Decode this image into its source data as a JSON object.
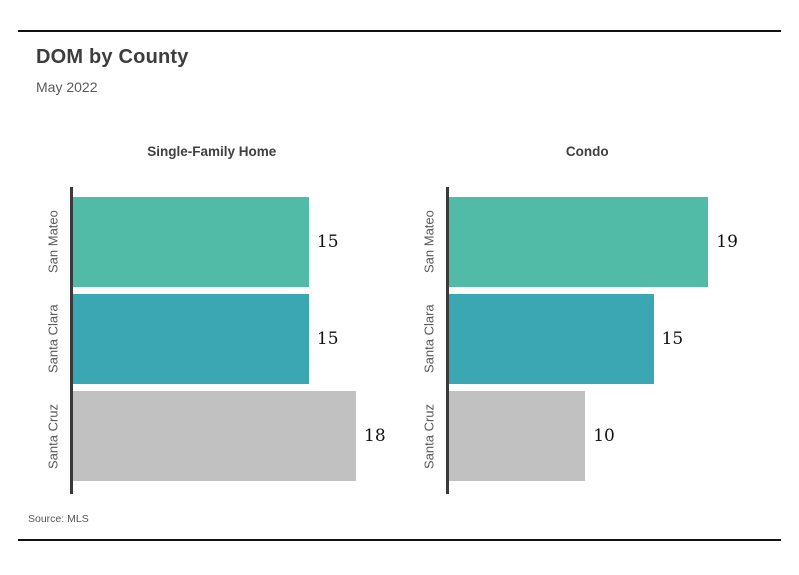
{
  "colors": {
    "background": "#ffffff",
    "title_text": "#3d3d3d",
    "subtitle_text": "#5a5a5a",
    "panel_title_text": "#404040",
    "category_label_text": "#5a5a5a",
    "value_label_text": "#111111",
    "axis_line": "#3a3a3a",
    "rule_line": "#121212"
  },
  "chart_data": {
    "type": "bar",
    "orientation": "horizontal",
    "title": "DOM by County",
    "subtitle": "May 2022",
    "source": "Source: MLS",
    "grid": false,
    "legend": "none",
    "categories": [
      "San Mateo",
      "Santa Clara",
      "Santa Cruz"
    ],
    "bar_colors": [
      "#52bba8",
      "#3aa7b3",
      "#c1c1c1"
    ],
    "panels": [
      {
        "title": "Single-Family Home",
        "values": [
          15,
          15,
          18
        ],
        "xmin": 0,
        "xmax": 20
      },
      {
        "title": "Condo",
        "values": [
          19,
          15,
          10
        ],
        "xmin": 0,
        "xmax": 23
      }
    ]
  }
}
